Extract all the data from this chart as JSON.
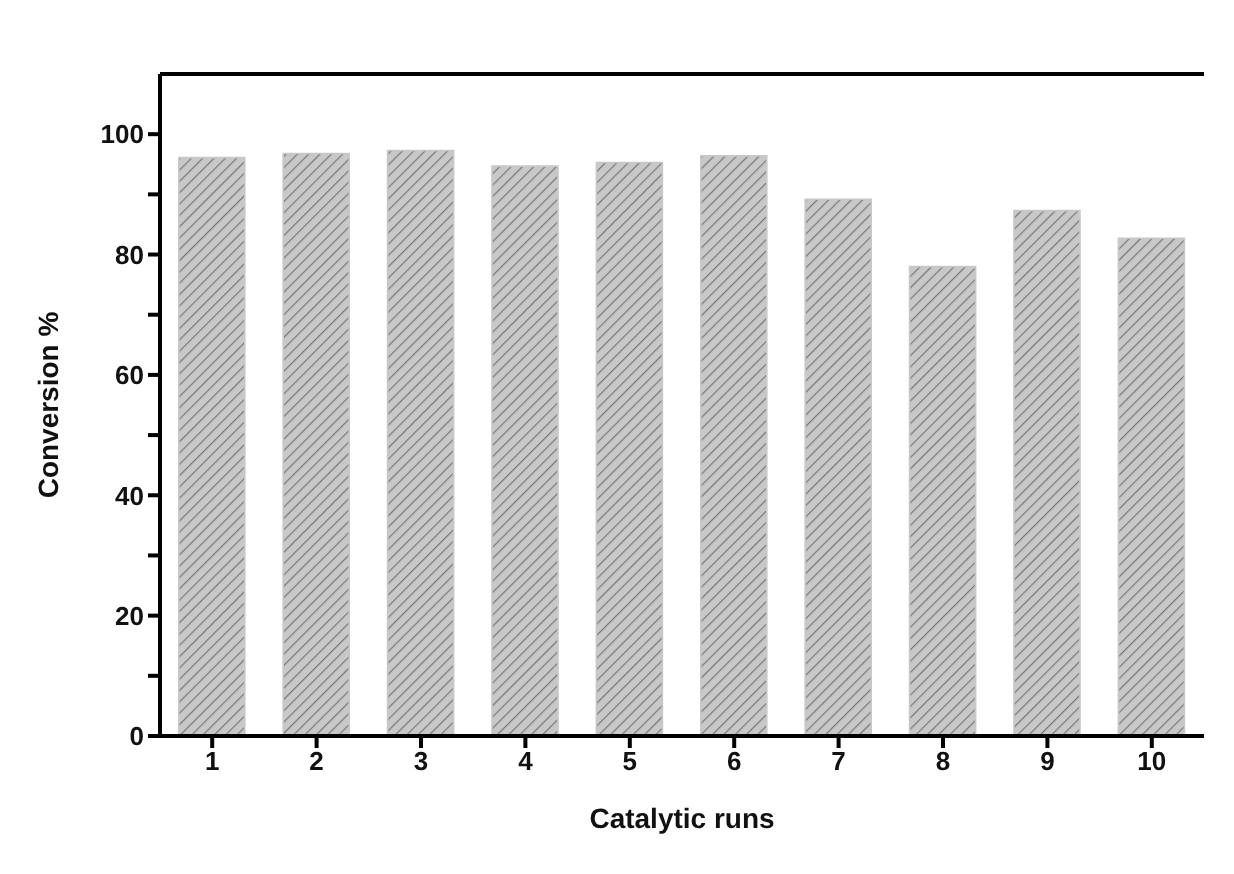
{
  "chart_data": {
    "type": "bar",
    "xlabel": "Catalytic runs",
    "ylabel": "Conversion %",
    "categories": [
      "1",
      "2",
      "3",
      "4",
      "5",
      "6",
      "7",
      "8",
      "9",
      "10"
    ],
    "values": [
      96.1,
      96.8,
      97.3,
      94.7,
      95.3,
      96.4,
      89.2,
      78,
      87.3,
      82.7
    ],
    "color": "#c8c8c8",
    "ylim": [
      0,
      110
    ],
    "yticks": [
      0,
      {
        "value": 10,
        "label": null
      },
      20,
      {
        "value": 30,
        "label": null
      },
      40,
      {
        "value": 50,
        "label": null
      },
      60,
      {
        "value": 70,
        "label": null
      },
      80,
      {
        "value": 90,
        "label": null
      },
      100
    ],
    "grid": false,
    "legend": false
  }
}
